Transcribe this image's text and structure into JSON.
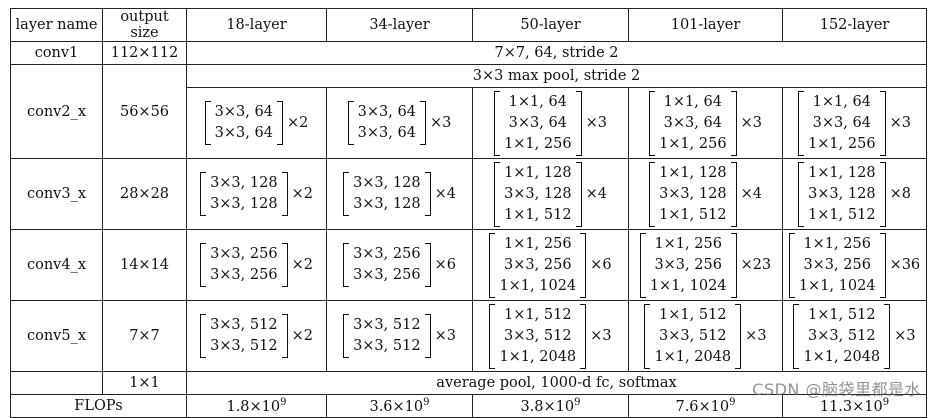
{
  "header": [
    "layer name",
    "output size",
    "18-layer",
    "34-layer",
    "50-layer",
    "101-layer",
    "152-layer"
  ],
  "conv1": {
    "name": "conv1",
    "size": "112×112",
    "spec": "7×7, 64, stride 2"
  },
  "pool": {
    "spec": "3×3 max pool, stride 2"
  },
  "stages": [
    {
      "name": "conv2_x",
      "size": "56×56",
      "blocks": [
        {
          "lines": [
            "3×3, 64",
            "3×3, 64"
          ],
          "rep": "×2"
        },
        {
          "lines": [
            "3×3, 64",
            "3×3, 64"
          ],
          "rep": "×3"
        },
        {
          "lines": [
            "1×1, 64",
            "3×3, 64",
            "1×1, 256"
          ],
          "rep": "×3"
        },
        {
          "lines": [
            "1×1, 64",
            "3×3, 64",
            "1×1, 256"
          ],
          "rep": "×3"
        },
        {
          "lines": [
            "1×1, 64",
            "3×3, 64",
            "1×1, 256"
          ],
          "rep": "×3"
        }
      ]
    },
    {
      "name": "conv3_x",
      "size": "28×28",
      "blocks": [
        {
          "lines": [
            "3×3, 128",
            "3×3, 128"
          ],
          "rep": "×2"
        },
        {
          "lines": [
            "3×3, 128",
            "3×3, 128"
          ],
          "rep": "×4"
        },
        {
          "lines": [
            "1×1, 128",
            "3×3, 128",
            "1×1, 512"
          ],
          "rep": "×4"
        },
        {
          "lines": [
            "1×1, 128",
            "3×3, 128",
            "1×1, 512"
          ],
          "rep": "×4"
        },
        {
          "lines": [
            "1×1, 128",
            "3×3, 128",
            "1×1, 512"
          ],
          "rep": "×8"
        }
      ]
    },
    {
      "name": "conv4_x",
      "size": "14×14",
      "blocks": [
        {
          "lines": [
            "3×3, 256",
            "3×3, 256"
          ],
          "rep": "×2"
        },
        {
          "lines": [
            "3×3, 256",
            "3×3, 256"
          ],
          "rep": "×6"
        },
        {
          "lines": [
            "1×1, 256",
            "3×3, 256",
            "1×1, 1024"
          ],
          "rep": "×6"
        },
        {
          "lines": [
            "1×1, 256",
            "3×3, 256",
            "1×1, 1024"
          ],
          "rep": "×23"
        },
        {
          "lines": [
            "1×1, 256",
            "3×3, 256",
            "1×1, 1024"
          ],
          "rep": "×36"
        }
      ]
    },
    {
      "name": "conv5_x",
      "size": "7×7",
      "blocks": [
        {
          "lines": [
            "3×3, 512",
            "3×3, 512"
          ],
          "rep": "×2"
        },
        {
          "lines": [
            "3×3, 512",
            "3×3, 512"
          ],
          "rep": "×3"
        },
        {
          "lines": [
            "1×1, 512",
            "3×3, 512",
            "1×1, 2048"
          ],
          "rep": "×3"
        },
        {
          "lines": [
            "1×1, 512",
            "3×3, 512",
            "1×1, 2048"
          ],
          "rep": "×3"
        },
        {
          "lines": [
            "1×1, 512",
            "3×3, 512",
            "1×1, 2048"
          ],
          "rep": "×3"
        }
      ]
    }
  ],
  "final": {
    "size": "1×1",
    "spec": "average pool, 1000-d fc, softmax"
  },
  "flops": {
    "label": "FLOPs",
    "values": [
      {
        "base": "1.8×10",
        "exp": "9"
      },
      {
        "base": "3.6×10",
        "exp": "9"
      },
      {
        "base": "3.8×10",
        "exp": "9"
      },
      {
        "base": "7.6×10",
        "exp": "9"
      },
      {
        "base": "11.3×10",
        "exp": "9"
      }
    ]
  },
  "watermark": "CSDN @脑袋里都是水"
}
